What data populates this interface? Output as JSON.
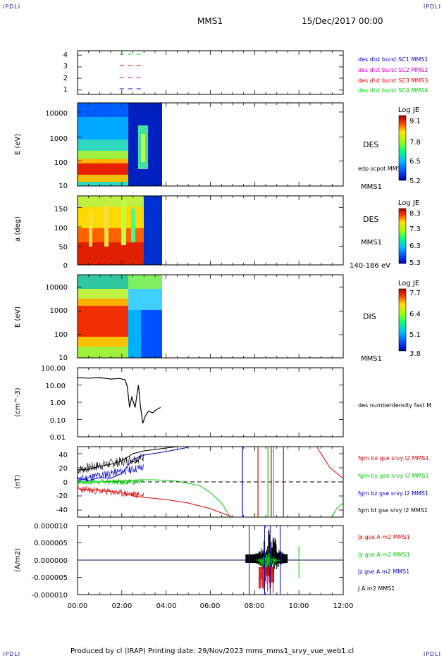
{
  "header": {
    "corner_label": "IPDLI",
    "mission": "MMS1",
    "date": "15/Dec/2017 00:00"
  },
  "footer": {
    "text": "Produced by cl (IRAP)   Printing date: 29/Nov/2023   mms_mms1_srvy_vue_web1.cl"
  },
  "colors": {
    "c1": "#0000cc",
    "c2": "#cc00cc",
    "c3": "#dd0000",
    "c4": "#00cc00",
    "black": "#000000"
  },
  "chart_data": [
    {
      "type": "scatter",
      "panel": "availability",
      "yticks": [
        "4",
        "3",
        "2",
        "1"
      ],
      "legend": [
        {
          "label": "des dist burst SC1 MMS1",
          "color": "#0000cc"
        },
        {
          "label": "des dist burst SC2 MMS2",
          "color": "#cc00cc"
        },
        {
          "label": "des dist burst SC3 MMS3",
          "color": "#dd0000"
        },
        {
          "label": "des dist burst SC4 MMS4",
          "color": "#00cc00"
        }
      ],
      "segments": [
        {
          "level": 4,
          "start_h": 1.9,
          "end_h": 2.9,
          "color": "#00cc00"
        },
        {
          "level": 3,
          "start_h": 1.9,
          "end_h": 2.9,
          "color": "#dd0000"
        },
        {
          "level": 2,
          "start_h": 1.9,
          "end_h": 2.9,
          "color": "#cc00cc"
        },
        {
          "level": 1,
          "start_h": 1.9,
          "end_h": 2.9,
          "color": "#0000cc"
        }
      ]
    },
    {
      "type": "heatmap",
      "panel": "des-energy",
      "ylabel": "E (eV)",
      "yticks": [
        "10000",
        "1000",
        "100",
        "10"
      ],
      "label_right": "DES",
      "label_right2": "edp scpot MMS1",
      "label_bottom": "MMS1",
      "colorbar": {
        "title": "Log JE",
        "ticks": [
          "9.1",
          "7.8",
          "6.5",
          "5.2"
        ]
      },
      "data_end_h": 3.8
    },
    {
      "type": "heatmap",
      "panel": "des-pitch",
      "ylabel": "a (deg)",
      "yticks": [
        "150",
        "100",
        "50",
        "0"
      ],
      "label_right": "DES",
      "label_right2": "MMS1",
      "label_bottom": "140-186 eV",
      "colorbar": {
        "title": "Log JE",
        "ticks": [
          "8.3",
          "7.3",
          "6.3",
          "5.3"
        ]
      },
      "data_end_h": 3.8
    },
    {
      "type": "heatmap",
      "panel": "dis-energy",
      "ylabel": "E (eV)",
      "yticks": [
        "10000",
        "1000",
        "100",
        "10"
      ],
      "label_right": "DIS",
      "label_bottom": "MMS1",
      "colorbar": {
        "title": "Log JE",
        "ticks": [
          "7.7",
          "6.4",
          "5.1",
          "3.8"
        ]
      },
      "data_end_h": 3.8
    },
    {
      "type": "line",
      "panel": "density",
      "ylabel": "(cm^-3)",
      "yticks": [
        "100.00",
        "10.00",
        "1.00",
        "0.10",
        "0.01"
      ],
      "yscale": "log",
      "legend": [
        {
          "label": "des numberdensity fast M",
          "color": "#000000"
        }
      ],
      "series": [
        {
          "x_hours": [
            0,
            0.5,
            1.0,
            1.5,
            1.9,
            2.15,
            2.25,
            2.35,
            2.45,
            2.6,
            2.75,
            2.85,
            2.95,
            3.05,
            3.2,
            3.4,
            3.6,
            3.75
          ],
          "values": [
            27,
            25,
            27,
            22,
            24,
            20,
            8,
            0.5,
            2.0,
            0.5,
            10,
            0.5,
            0.06,
            0.15,
            0.3,
            0.25,
            0.4,
            0.5
          ]
        }
      ]
    },
    {
      "type": "line",
      "panel": "magnetic-field",
      "ylabel": "(nT)",
      "yticks": [
        "40",
        "20",
        "0",
        "-20",
        "-40"
      ],
      "ylim": [
        -50,
        50
      ],
      "legend": [
        {
          "label": "fgm bx gse srvy l2 MMS1",
          "color": "#dd0000"
        },
        {
          "label": "fgm by gse srvy l2 MMS1",
          "color": "#00cc00"
        },
        {
          "label": "fgm bz gse srvy l2 MMS1",
          "color": "#0000cc"
        },
        {
          "label": "fgm bt gse srvy l2 MMS1",
          "color": "#000000"
        }
      ],
      "series": [
        {
          "name": "bt",
          "x_hours": [
            0,
            0.5,
            1.0,
            1.5,
            2.0,
            2.5,
            3.0,
            4.0,
            5.0
          ],
          "values": [
            17,
            18,
            22,
            25,
            30,
            40,
            44,
            48,
            52
          ]
        },
        {
          "name": "bz",
          "x_hours": [
            0,
            0.5,
            1.0,
            1.5,
            2.0,
            2.5,
            3.0,
            4.0,
            5.0
          ],
          "values": [
            5,
            2,
            6,
            5,
            12,
            32,
            38,
            43,
            49
          ]
        },
        {
          "name": "by",
          "x_hours": [
            0,
            1,
            2.9,
            3.5,
            4.5,
            5.5,
            6.0,
            6.5,
            6.9
          ],
          "values": [
            0,
            0,
            3,
            3,
            1,
            -5,
            -15,
            -30,
            -50
          ]
        },
        {
          "name": "bx",
          "x_hours": [
            0,
            1,
            2,
            2.5,
            3.0,
            4.0,
            5.0,
            6.0,
            7.0
          ],
          "values": [
            -10,
            -12,
            -15,
            -20,
            -22,
            -25,
            -30,
            -38,
            -50
          ]
        },
        {
          "name": "bx-late",
          "x_hours": [
            10.8,
            11.4,
            11.8,
            12.0
          ],
          "values": [
            50,
            20,
            10,
            5
          ]
        },
        {
          "name": "by-late",
          "x_hours": [
            11.5,
            11.7,
            12.0
          ],
          "values": [
            -50,
            -38,
            -30
          ]
        }
      ],
      "spikes": [
        {
          "x_hours": 7.45,
          "color": "#0000cc"
        },
        {
          "x_hours": 8.15,
          "color": "#dd0000"
        },
        {
          "x_hours": 8.6,
          "color": "#00cc00"
        },
        {
          "x_hours": 8.75,
          "color": "#dd0000"
        },
        {
          "x_hours": 8.85,
          "color": "#00cc00"
        },
        {
          "x_hours": 9.3,
          "color": "#dd0000"
        }
      ]
    },
    {
      "type": "line",
      "panel": "current-density",
      "ylabel": "(A/m2)",
      "yticks": [
        "0.000010",
        "0.000005",
        "0.000000",
        "-0.000005",
        "-0.000010"
      ],
      "ylim": [
        -1e-05,
        1e-05
      ],
      "xticks": [
        "00:00",
        "02:00",
        "04:00",
        "06:00",
        "08:00",
        "10:00",
        "12:00"
      ],
      "legend": [
        {
          "label": "Jx gse A m2 MMS1",
          "color": "#dd0000"
        },
        {
          "label": "Jy gse A m2 MMS1",
          "color": "#00cc00"
        },
        {
          "label": "Jz gse A m2 MMS1",
          "color": "#0000cc"
        },
        {
          "label": "J A m2 MMS1",
          "color": "#000000"
        }
      ]
    }
  ]
}
